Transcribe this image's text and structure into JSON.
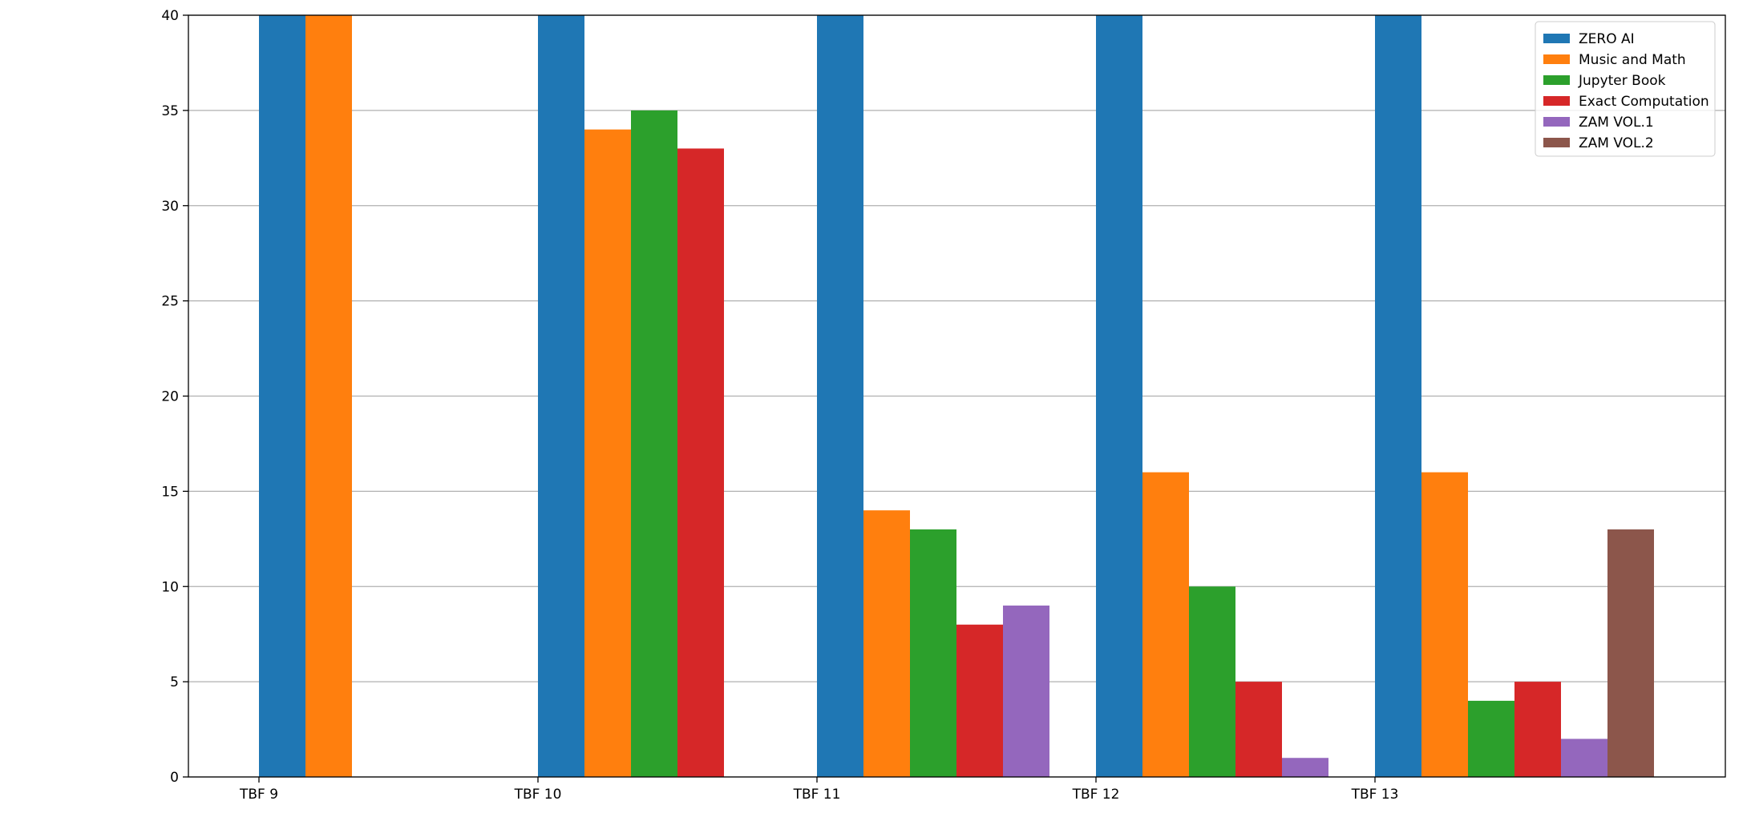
{
  "chart_data": {
    "type": "bar",
    "title": "",
    "xlabel": "",
    "ylabel": "",
    "categories": [
      "TBF 9",
      "TBF 10",
      "TBF 11",
      "TBF 12",
      "TBF 13"
    ],
    "ylim": [
      0,
      40
    ],
    "yticks": [
      0,
      5,
      10,
      15,
      20,
      25,
      30,
      35,
      40
    ],
    "grid": "horizontal",
    "legend_position": "top-right",
    "series": [
      {
        "name": "ZERO AI",
        "color": "#1f77b4",
        "values": [
          40,
          40,
          40,
          40,
          40
        ]
      },
      {
        "name": "Music and Math",
        "color": "#ff7f0e",
        "values": [
          40,
          34,
          14,
          16,
          16
        ]
      },
      {
        "name": "Jupyter Book",
        "color": "#2ca02c",
        "values": [
          null,
          35,
          13,
          10,
          4
        ]
      },
      {
        "name": "Exact Computation",
        "color": "#d62728",
        "values": [
          null,
          33,
          8,
          5,
          5
        ]
      },
      {
        "name": "ZAM VOL.1",
        "color": "#9467bd",
        "values": [
          null,
          null,
          9,
          1,
          2
        ]
      },
      {
        "name": "ZAM VOL.2",
        "color": "#8c564b",
        "values": [
          null,
          null,
          null,
          null,
          13
        ]
      }
    ]
  }
}
